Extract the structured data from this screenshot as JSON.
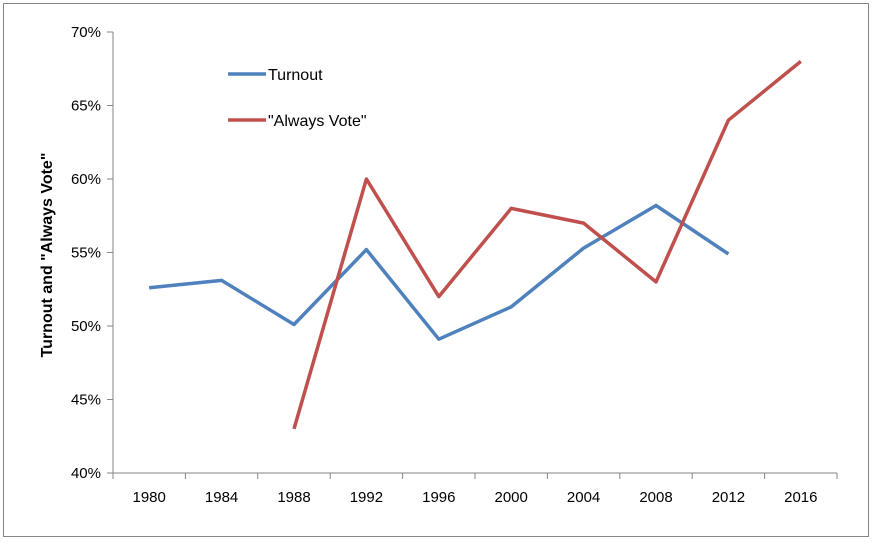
{
  "chart_data": {
    "type": "line",
    "title": "",
    "xlabel": "",
    "ylabel": "Turnout and \"Always Vote\"",
    "categories": [
      "1980",
      "1984",
      "1988",
      "1992",
      "1996",
      "2000",
      "2004",
      "2008",
      "2012",
      "2016"
    ],
    "y_tick_labels": [
      "40%",
      "45%",
      "50%",
      "55%",
      "60%",
      "65%",
      "70%"
    ],
    "ylim": [
      40,
      70
    ],
    "y_unit": "%",
    "grid": false,
    "legend_position": "top-left",
    "series": [
      {
        "name": "Turnout",
        "color": "#4F81BD",
        "values": [
          52.6,
          53.1,
          50.1,
          55.2,
          49.1,
          51.3,
          55.3,
          58.2,
          54.9,
          null
        ]
      },
      {
        "name": "\"Always Vote\"",
        "color": "#C0504D",
        "values": [
          null,
          null,
          43,
          60,
          52,
          58,
          57,
          53,
          64,
          68
        ]
      }
    ]
  }
}
